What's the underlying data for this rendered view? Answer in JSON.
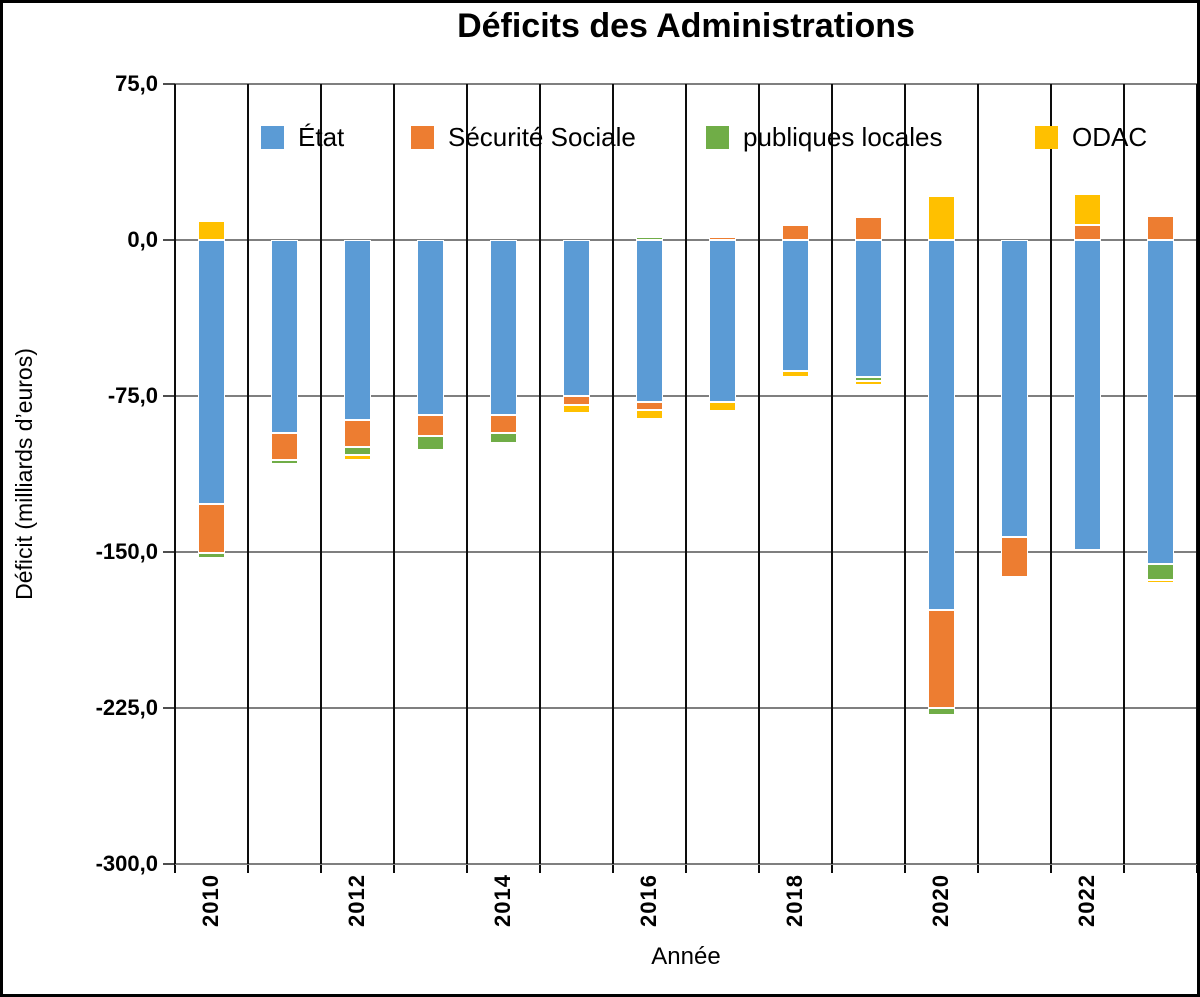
{
  "title": "Déficits des Administrations",
  "y_axis": {
    "label": "Déficit (milliards d’euros)",
    "tick_labels": [
      "75,0",
      "0,0",
      "-75,0",
      "-150,0",
      "-225,0",
      "-300,0"
    ]
  },
  "x_axis": {
    "label": "Année",
    "tick_labels": [
      "2010",
      "2012",
      "2014",
      "2016",
      "2018",
      "2020",
      "2022"
    ]
  },
  "legend": [
    {
      "label": "État",
      "color": "#5B9BD5"
    },
    {
      "label": "Sécurité Sociale",
      "color": "#ED7D31"
    },
    {
      "label": "publiques locales",
      "color": "#70AD47"
    },
    {
      "label": "ODAC",
      "color": "#FFC000"
    }
  ],
  "colors": {
    "etat": "#5B9BD5",
    "securite_sociale": "#ED7D31",
    "publiques_locales": "#70AD47",
    "odac": "#FFC000",
    "gridline": "#7f7f7f",
    "category_line": "#0d0d0d"
  },
  "chart_data": {
    "type": "bar",
    "stacked": true,
    "title": "Déficits des Administrations",
    "xlabel": "Année",
    "ylabel": "Déficit (milliards d’euros)",
    "ylim": [
      -300,
      75
    ],
    "y_tick_step": 75,
    "grid": true,
    "legend_position": "top-inside",
    "categories": [
      2010,
      2011,
      2012,
      2013,
      2014,
      2015,
      2016,
      2017,
      2018,
      2019,
      2020,
      2021,
      2022,
      2023
    ],
    "series": [
      {
        "name": "État",
        "color": "#5B9BD5",
        "values": [
          -127,
          -93,
          -86.5,
          -84,
          -84,
          -75,
          -78,
          -78,
          -63,
          -66,
          -178,
          -143,
          -149,
          -156
        ]
      },
      {
        "name": "Sécurité Sociale",
        "color": "#ED7D31",
        "values": [
          -23.5,
          -13,
          -13,
          -10,
          -9,
          -4.5,
          -3.7,
          1.3,
          7,
          11,
          -47,
          -19,
          7,
          11.5
        ]
      },
      {
        "name": "publiques locales",
        "color": "#70AD47",
        "values": [
          -2.4,
          -1.6,
          -4,
          -7,
          -4.8,
          0,
          1.5,
          1.2,
          1.3,
          -2,
          -3.2,
          0,
          0,
          -7.5
        ]
      },
      {
        "name": "ODAC",
        "color": "#FFC000",
        "values": [
          9,
          0,
          -2.5,
          -1,
          0,
          -3.8,
          -4.3,
          -4,
          -2.7,
          -1.8,
          21,
          0,
          15,
          -1.5
        ]
      }
    ]
  }
}
